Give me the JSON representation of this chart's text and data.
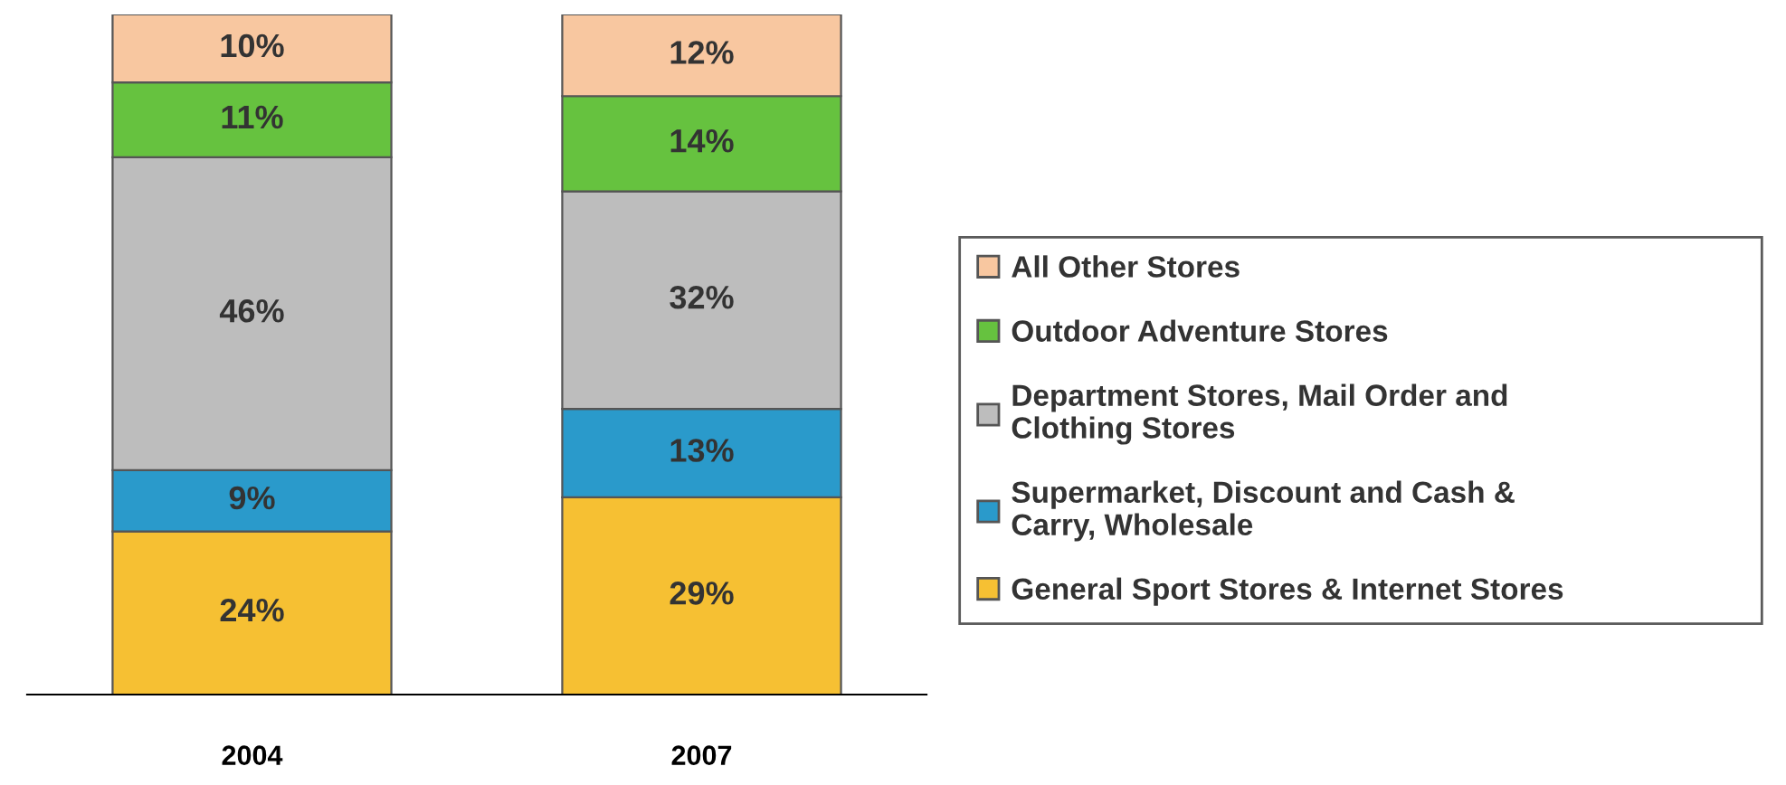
{
  "chart_data": {
    "type": "bar",
    "stacked": true,
    "categories": [
      "2004",
      "2007"
    ],
    "series": [
      {
        "name": "General Sport Stores & Internet Stores",
        "color": "#f6c033",
        "values": [
          24,
          29
        ],
        "value_labels": [
          "24%",
          "29%"
        ]
      },
      {
        "name": "Supermarket, Discount and Cash &\nCarry, Wholesale",
        "color": "#2a9acb",
        "values": [
          9,
          13
        ],
        "value_labels": [
          "9%",
          "13%"
        ]
      },
      {
        "name": "Department Stores, Mail Order and\nClothing Stores",
        "color": "#bdbdbd",
        "values": [
          46,
          32
        ],
        "value_labels": [
          "46%",
          "32%"
        ]
      },
      {
        "name": "Outdoor Adventure Stores",
        "color": "#66c23f",
        "values": [
          11,
          14
        ],
        "value_labels": [
          "11%",
          "14%"
        ]
      },
      {
        "name": "All Other Stores",
        "color": "#f8c7a0",
        "values": [
          10,
          12
        ],
        "value_labels": [
          "10%",
          "12%"
        ]
      }
    ],
    "legend": "right"
  }
}
